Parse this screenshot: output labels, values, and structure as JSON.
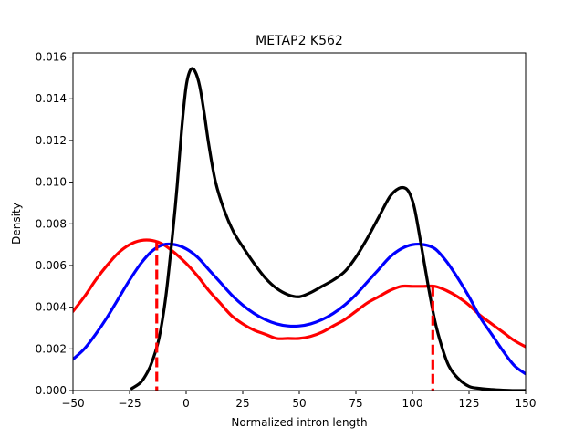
{
  "chart_data": {
    "type": "line",
    "title": "METAP2 K562",
    "xlabel": "Normalized intron length",
    "ylabel": "Density",
    "xlim": [
      -50,
      150
    ],
    "ylim": [
      0,
      0.0162
    ],
    "xticks": [
      -50,
      -25,
      0,
      25,
      50,
      75,
      100,
      125,
      150
    ],
    "yticks": [
      0.0,
      0.002,
      0.004,
      0.006,
      0.008,
      0.01,
      0.012,
      0.014,
      0.016
    ],
    "xtick_labels": [
      "−50",
      "−25",
      "0",
      "25",
      "50",
      "75",
      "100",
      "125",
      "150"
    ],
    "ytick_labels": [
      "0.000",
      "0.002",
      "0.004",
      "0.006",
      "0.008",
      "0.010",
      "0.012",
      "0.014",
      "0.016"
    ],
    "grid": false,
    "series": [
      {
        "color": "#000000",
        "x": [
          -24,
          -20,
          -17,
          -15,
          -12,
          -9,
          -6,
          -4,
          -2,
          0,
          2,
          4,
          6,
          8,
          10,
          13,
          17,
          21,
          25,
          30,
          35,
          40,
          45,
          50,
          55,
          60,
          65,
          70,
          75,
          80,
          85,
          90,
          94,
          97,
          99,
          101,
          104,
          107,
          110,
          113,
          116,
          120,
          125,
          130,
          135,
          140,
          145,
          150
        ],
        "y": [
          0.0001,
          0.0004,
          0.0009,
          0.0014,
          0.0025,
          0.0045,
          0.0075,
          0.0098,
          0.0125,
          0.0146,
          0.0154,
          0.0153,
          0.0146,
          0.0133,
          0.0118,
          0.01,
          0.0086,
          0.0076,
          0.0069,
          0.0061,
          0.0054,
          0.0049,
          0.0046,
          0.0045,
          0.0047,
          0.005,
          0.0053,
          0.0057,
          0.0064,
          0.0073,
          0.0083,
          0.0093,
          0.0097,
          0.0097,
          0.0094,
          0.0087,
          0.0069,
          0.005,
          0.0033,
          0.0021,
          0.0012,
          0.0006,
          0.0002,
          0.0001,
          5e-05,
          2e-05,
          0.0,
          0.0
        ]
      },
      {
        "color": "#0000ff",
        "x": [
          -50,
          -45,
          -40,
          -35,
          -30,
          -25,
          -20,
          -15,
          -10,
          -5,
          0,
          5,
          10,
          15,
          20,
          25,
          30,
          35,
          40,
          45,
          50,
          55,
          60,
          65,
          70,
          75,
          80,
          85,
          90,
          95,
          100,
          105,
          110,
          115,
          120,
          125,
          130,
          135,
          140,
          145,
          150
        ],
        "y": [
          0.0015,
          0.002,
          0.0027,
          0.0035,
          0.0044,
          0.0053,
          0.0061,
          0.0067,
          0.007,
          0.007,
          0.0068,
          0.0064,
          0.0058,
          0.0052,
          0.0046,
          0.0041,
          0.0037,
          0.0034,
          0.0032,
          0.0031,
          0.0031,
          0.0032,
          0.0034,
          0.0037,
          0.0041,
          0.0046,
          0.0052,
          0.0058,
          0.0064,
          0.0068,
          0.007,
          0.007,
          0.0068,
          0.0062,
          0.0054,
          0.0045,
          0.0035,
          0.0027,
          0.0019,
          0.0012,
          0.0008
        ]
      },
      {
        "color": "#ff0000",
        "x": [
          -50,
          -45,
          -40,
          -35,
          -30,
          -25,
          -20,
          -15,
          -10,
          -5,
          0,
          5,
          10,
          15,
          20,
          25,
          30,
          35,
          40,
          45,
          50,
          55,
          60,
          65,
          70,
          75,
          80,
          85,
          90,
          95,
          100,
          105,
          110,
          115,
          120,
          125,
          130,
          135,
          140,
          145,
          150
        ],
        "y": [
          0.0038,
          0.0045,
          0.0053,
          0.006,
          0.0066,
          0.007,
          0.0072,
          0.0072,
          0.007,
          0.0066,
          0.0061,
          0.0055,
          0.0048,
          0.0042,
          0.0036,
          0.0032,
          0.0029,
          0.0027,
          0.0025,
          0.0025,
          0.0025,
          0.0026,
          0.0028,
          0.0031,
          0.0034,
          0.0038,
          0.0042,
          0.0045,
          0.0048,
          0.005,
          0.005,
          0.005,
          0.005,
          0.0048,
          0.0045,
          0.0041,
          0.0036,
          0.0032,
          0.0028,
          0.0024,
          0.0021
        ]
      }
    ],
    "vlines": [
      {
        "x": -13,
        "y_top": 0.0072,
        "color": "#ff0000",
        "style": "dashed"
      },
      {
        "x": 109,
        "y_top": 0.005,
        "color": "#ff0000",
        "style": "dashed"
      }
    ]
  }
}
